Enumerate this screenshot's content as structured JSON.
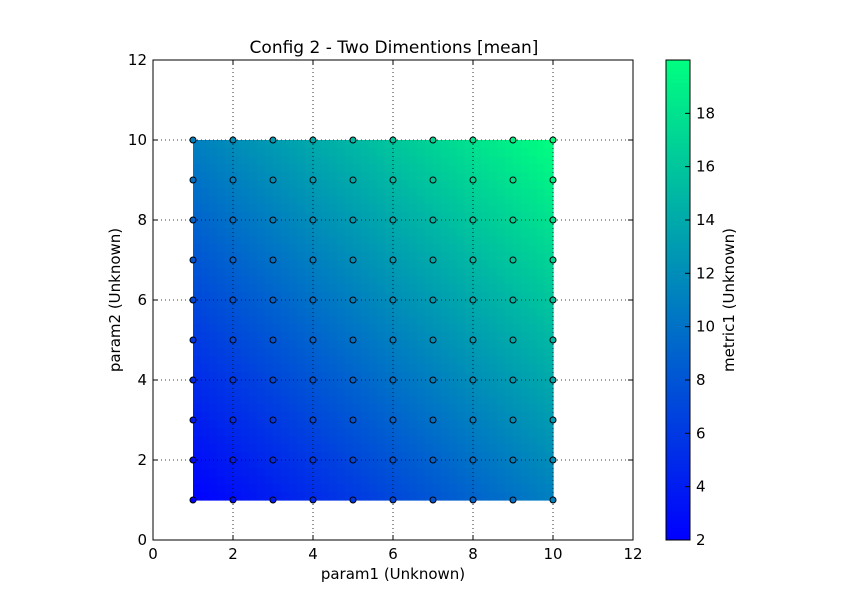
{
  "chart_data": {
    "type": "heatmap",
    "title": "Config 2 - Two Dimentions [mean]",
    "xlabel": "param1 (Unknown)",
    "ylabel": "param2 (Unknown)",
    "colorbar_label": "metric1 (Unknown)",
    "xlim": [
      0,
      12
    ],
    "ylim": [
      0,
      12
    ],
    "x_ticks": [
      "0",
      "2",
      "4",
      "6",
      "8",
      "10",
      "12"
    ],
    "y_ticks": [
      "0",
      "2",
      "4",
      "6",
      "8",
      "10",
      "12"
    ],
    "colorbar_range": [
      2,
      20
    ],
    "colorbar_ticks": [
      "2",
      "4",
      "6",
      "8",
      "10",
      "12",
      "14",
      "16",
      "18"
    ],
    "grid": true,
    "colormap": [
      "#0000ff",
      "#00ff80"
    ],
    "x_values": [
      1,
      2,
      3,
      4,
      5,
      6,
      7,
      8,
      9,
      10
    ],
    "y_values": [
      1,
      2,
      3,
      4,
      5,
      6,
      7,
      8,
      9,
      10
    ],
    "z_rule": "metric1 = param1 + param2",
    "z_min": 2,
    "z_max": 20
  }
}
